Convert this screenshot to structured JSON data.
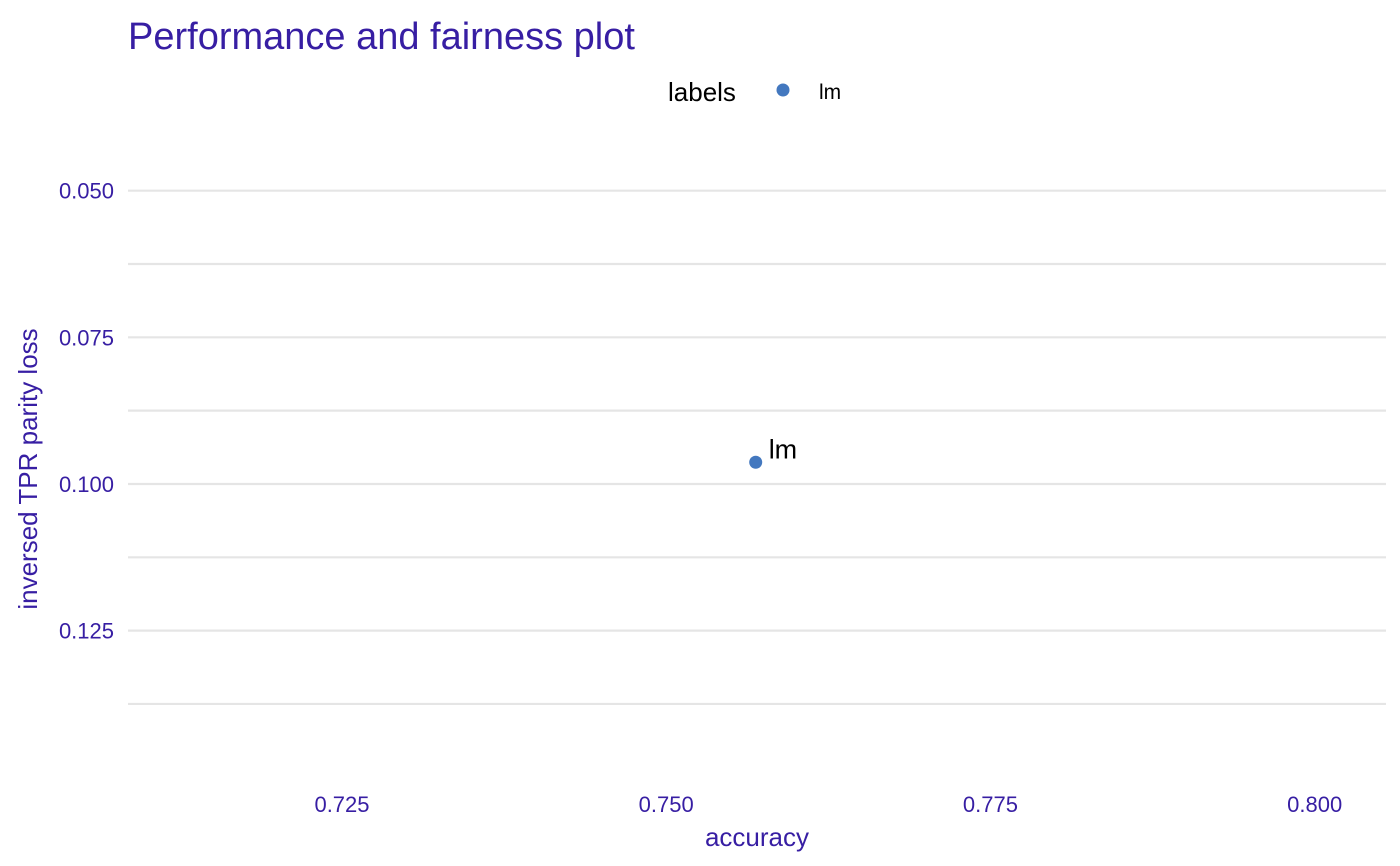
{
  "colors": {
    "text_accent": "#371EA3",
    "grid": "#E5E5E5",
    "point": "#4378BF",
    "label": "#000000"
  },
  "chart_data": {
    "type": "scatter",
    "title": "Performance and fairness plot",
    "xlabel": "accuracy",
    "ylabel": "inversed TPR parity loss",
    "xlim": [
      0.7085,
      0.8055
    ],
    "ylim": [
      0.0417,
      0.1474
    ],
    "y_reversed": true,
    "x_ticks": [
      "0.725",
      "0.750",
      "0.775",
      "0.800"
    ],
    "y_ticks": [
      "0.050",
      "0.075",
      "0.100",
      "0.125"
    ],
    "y_minor_ticks": [
      0.0625,
      0.0875,
      0.1125,
      0.1375
    ],
    "grid": "horizontal",
    "legend": {
      "title": "labels",
      "position": "top",
      "entries": [
        "lm"
      ]
    },
    "series": [
      {
        "name": "lm",
        "x": [
          0.7569
        ],
        "y": [
          0.0963
        ],
        "labels": [
          "lm"
        ]
      }
    ]
  }
}
